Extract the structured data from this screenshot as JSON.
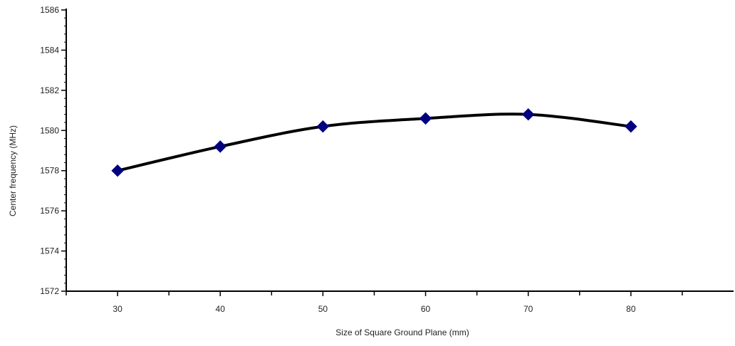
{
  "chart_data": {
    "type": "line",
    "title": "",
    "xlabel": "Size of Square Ground Plane (mm)",
    "ylabel": "Center frequency (MHz)",
    "x": [
      30,
      40,
      50,
      60,
      70,
      80
    ],
    "series": [
      {
        "values": [
          1578.0,
          1579.2,
          1580.2,
          1580.6,
          1580.8,
          1580.2
        ]
      }
    ],
    "x_ticks": [
      "30",
      "40",
      "50",
      "60",
      "70",
      "80"
    ],
    "xlim": [
      25,
      90
    ],
    "ylim": [
      1572,
      1586
    ],
    "y_ticks": [
      "1572",
      "1574",
      "1576",
      "1578",
      "1580",
      "1582",
      "1584",
      "1586"
    ],
    "y_minor_step": 0.4,
    "grid": false,
    "legend": "none",
    "line_color": "#000000",
    "marker": "diamond",
    "marker_color": "#000080",
    "smooth": true
  }
}
